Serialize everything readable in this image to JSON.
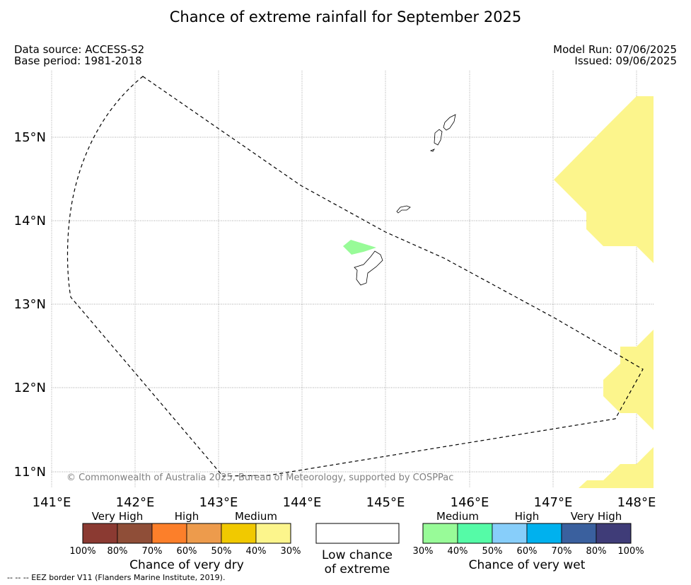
{
  "title": "Chance of extreme rainfall for September 2025",
  "info": {
    "source": "Data source: ACCESS-S2",
    "base": "Base period: 1981-2018",
    "run": "Model Run: 07/06/2025",
    "issued": "Issued: 09/06/2025"
  },
  "map": {
    "lon_labels": [
      "141°E",
      "142°E",
      "143°E",
      "144°E",
      "145°E",
      "146°E",
      "147°E",
      "148°E"
    ],
    "lat_labels": [
      "15°N",
      "14°N",
      "13°N",
      "12°N",
      "11°N"
    ],
    "copyright": "© Commonwealth of Australia 2025, Bureau of Meteorology, supported by COSPPac",
    "colors": {
      "medium_dry": "#fcf58c",
      "medium_wet": "#98fb98",
      "border": "#000000"
    }
  },
  "legend_dry": {
    "labels": [
      "Very High",
      "High",
      "Medium"
    ],
    "colors": [
      "#8b3a32",
      "#8f4e38",
      "#fc7f2a",
      "#ed9b4c",
      "#f1c900",
      "#fcf58c"
    ],
    "ticks": [
      "100%",
      "80%",
      "70%",
      "60%",
      "50%",
      "40%",
      "30%"
    ],
    "caption": "Chance of very dry"
  },
  "legend_low": {
    "caption_line1": "Low chance",
    "caption_line2": "of extreme"
  },
  "legend_wet": {
    "labels": [
      "Medium",
      "High",
      "Very High"
    ],
    "colors": [
      "#98fb98",
      "#55fba7",
      "#87cefa",
      "#00b1ee",
      "#3a609e",
      "#3f3c78"
    ],
    "ticks": [
      "30%",
      "40%",
      "50%",
      "60%",
      "70%",
      "80%",
      "100%"
    ],
    "caption": "Chance of very wet"
  },
  "footnote": "--  --  -- EEZ border V11 (Flanders Marine Institute, 2019)."
}
